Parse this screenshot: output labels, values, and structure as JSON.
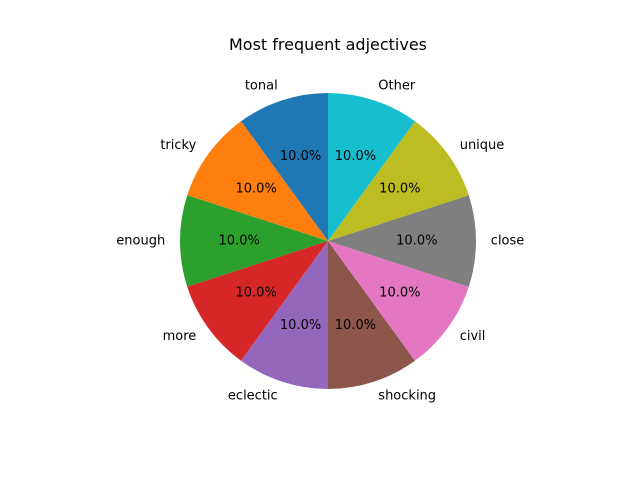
{
  "chart_data": {
    "type": "pie",
    "title": "Most frequent adjectives",
    "categories": [
      "tonal",
      "tricky",
      "enough",
      "more",
      "eclectic",
      "shocking",
      "civil",
      "close",
      "unique",
      "Other"
    ],
    "values": [
      10,
      10,
      10,
      10,
      10,
      10,
      10,
      10,
      10,
      10
    ],
    "percent_labels": [
      "10.0%",
      "10.0%",
      "10.0%",
      "10.0%",
      "10.0%",
      "10.0%",
      "10.0%",
      "10.0%",
      "10.0%",
      "10.0%"
    ],
    "colors": [
      "#1f77b4",
      "#ff7f0e",
      "#2ca02c",
      "#d62728",
      "#9467bd",
      "#8c564b",
      "#e377c2",
      "#7f7f7f",
      "#bcbd22",
      "#17becf"
    ],
    "start_angle_deg": 90,
    "direction": "counterclockwise",
    "legend": "none"
  }
}
